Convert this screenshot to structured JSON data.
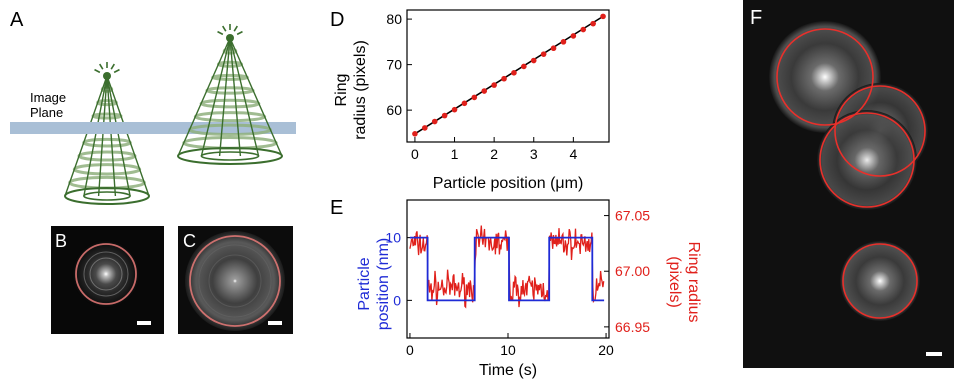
{
  "panels": {
    "a": {
      "letter": "A",
      "plane_label_line1": "Image",
      "plane_label_line2": "Plane"
    },
    "b": {
      "letter": "B"
    },
    "c": {
      "letter": "C"
    },
    "f": {
      "letter": "F"
    },
    "d": {
      "letter": "D",
      "ylabel_line1": "Ring",
      "ylabel_line2": "radius (pixels)",
      "xlabel": "Particle position (μm)",
      "xticks": [
        "0",
        "1",
        "2",
        "3",
        "4"
      ],
      "yticks": [
        "60",
        "70",
        "80"
      ]
    },
    "e": {
      "letter": "E",
      "ylabel_left_line1": "Particle",
      "ylabel_left_line2": "position (nm)",
      "ylabel_right_line1": "Ring radius",
      "ylabel_right_line2": "(pixels)",
      "xlabel": "Time (s)",
      "xticks": [
        "0",
        "10",
        "20"
      ],
      "yticks_left": [
        "10",
        "0"
      ],
      "yticks_right": [
        "67.05",
        "67.00",
        "66.95"
      ]
    }
  },
  "colors": {
    "cone": "#3b6e2e",
    "cone_light": "#8fb07e",
    "plane": "#a9bfd6",
    "fit": "#e8302b",
    "blue": "#1f2bd6",
    "red": "#e0201b"
  },
  "chart_data": [
    {
      "type": "scatter",
      "panel": "D",
      "title": "",
      "xlabel": "Particle position (μm)",
      "ylabel": "Ring radius (pixels)",
      "xlim": [
        -0.2,
        4.9
      ],
      "ylim": [
        53,
        82
      ],
      "grid": false,
      "x": [
        0.0,
        0.25,
        0.5,
        0.75,
        1.0,
        1.25,
        1.5,
        1.75,
        2.0,
        2.25,
        2.5,
        2.75,
        3.0,
        3.25,
        3.5,
        3.75,
        4.0,
        4.25,
        4.5,
        4.75
      ],
      "y": [
        54.8,
        56.1,
        57.5,
        58.8,
        60.1,
        61.5,
        62.8,
        64.2,
        65.5,
        66.9,
        68.2,
        69.6,
        70.9,
        72.3,
        73.6,
        75.0,
        76.3,
        77.7,
        79.0,
        80.6
      ],
      "fit_line": {
        "x": [
          0.0,
          4.75
        ],
        "y": [
          54.8,
          80.6
        ]
      }
    },
    {
      "type": "line",
      "panel": "E",
      "title": "",
      "xlabel": "Time (s)",
      "xlim": [
        -0.3,
        20.3
      ],
      "y_left": {
        "label": "Particle position (nm)",
        "lim": [
          -6,
          16
        ]
      },
      "y_right": {
        "label": "Ring radius (pixels)",
        "lim": [
          66.94,
          67.064
        ]
      },
      "grid": false,
      "series": [
        {
          "axis": "left",
          "step_x": [
            0,
            1.8,
            1.8,
            6.6,
            6.6,
            10.1,
            10.1,
            14.2,
            14.2,
            18.6,
            18.6,
            19.8
          ],
          "step_y": [
            10,
            10,
            0,
            0,
            10,
            10,
            0,
            0,
            10,
            10,
            0,
            0
          ]
        },
        {
          "axis": "right",
          "noise_amplitude": 0.012,
          "levels": [
            {
              "from": 0,
              "to": 1.8,
              "value": 67.024
            },
            {
              "from": 1.8,
              "to": 6.6,
              "value": 66.985
            },
            {
              "from": 6.6,
              "to": 10.1,
              "value": 67.025
            },
            {
              "from": 10.1,
              "to": 14.2,
              "value": 66.984
            },
            {
              "from": 14.2,
              "to": 18.6,
              "value": 67.025
            },
            {
              "from": 18.6,
              "to": 19.8,
              "value": 66.985
            }
          ]
        }
      ]
    }
  ]
}
